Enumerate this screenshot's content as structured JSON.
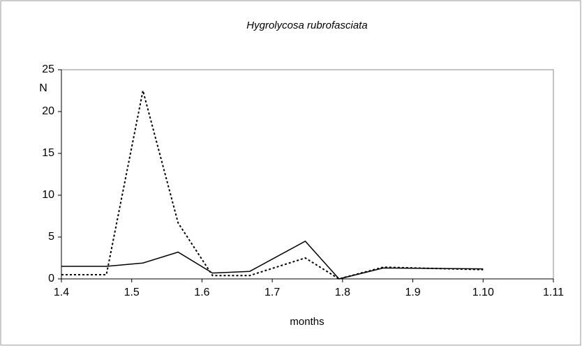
{
  "chart_data": {
    "type": "line",
    "title": "Hygrolycosa rubrofasciata",
    "x_label": "months",
    "y_label": "N",
    "xlim": [
      4,
      11
    ],
    "xticks": [
      {
        "value": 4,
        "label": "1.4"
      },
      {
        "value": 5,
        "label": "1.5"
      },
      {
        "value": 6,
        "label": "1.6"
      },
      {
        "value": 7,
        "label": "1.7"
      },
      {
        "value": 8,
        "label": "1.8"
      },
      {
        "value": 9,
        "label": "1.9"
      },
      {
        "value": 10,
        "label": "1.10"
      },
      {
        "value": 11,
        "label": "1.11"
      }
    ],
    "ylim": [
      0,
      25
    ],
    "yticks": [
      0,
      5,
      10,
      15,
      20,
      25
    ],
    "grid": false,
    "x": [
      4.0,
      4.64,
      5.16,
      5.66,
      6.15,
      6.68,
      7.47,
      7.95,
      8.58,
      10.0
    ],
    "series": [
      {
        "color": "#000000",
        "line_style": "solid",
        "values": [
          1.5,
          1.5,
          1.9,
          3.2,
          0.7,
          0.9,
          4.5,
          0.0,
          1.3,
          1.2
        ]
      },
      {
        "color": "#000000",
        "line_style": "dashed",
        "values": [
          0.5,
          0.5,
          22.5,
          6.7,
          0.4,
          0.4,
          2.5,
          0.0,
          1.4,
          1.1
        ]
      }
    ]
  }
}
